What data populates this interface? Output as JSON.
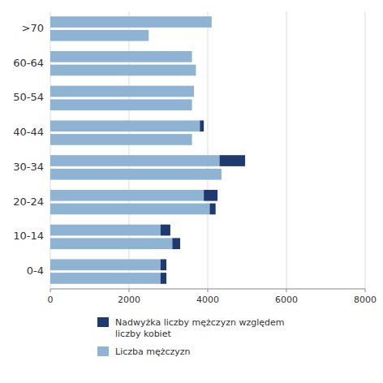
{
  "chart_data": {
    "type": "bar",
    "orientation": "horizontal",
    "stacked": true,
    "grid": true,
    "legend": "bottom",
    "categories": [
      "0-4",
      "10-14",
      "20-24",
      "30-34",
      "40-44",
      "50-54",
      "60-64",
      ">70"
    ],
    "series": [
      {
        "name": "Liczba mężczyzn",
        "color": "#8fb4d3",
        "values_upper": [
          2800,
          2800,
          3900,
          4300,
          3800,
          3650,
          3600,
          4100
        ],
        "values_lower": [
          2800,
          3100,
          4050,
          4350,
          3600,
          3600,
          3700,
          2500
        ]
      },
      {
        "name": "Nadwyżka liczby mężczyzn względem\nliczby kobiet",
        "color": "#1f3a6e",
        "values_upper": [
          150,
          250,
          350,
          650,
          100,
          0,
          0,
          0
        ],
        "values_lower": [
          150,
          200,
          150,
          0,
          0,
          0,
          0,
          0
        ]
      }
    ],
    "xlim": [
      0,
      8000
    ],
    "xticks": [
      0,
      2000,
      4000,
      6000,
      8000
    ]
  }
}
